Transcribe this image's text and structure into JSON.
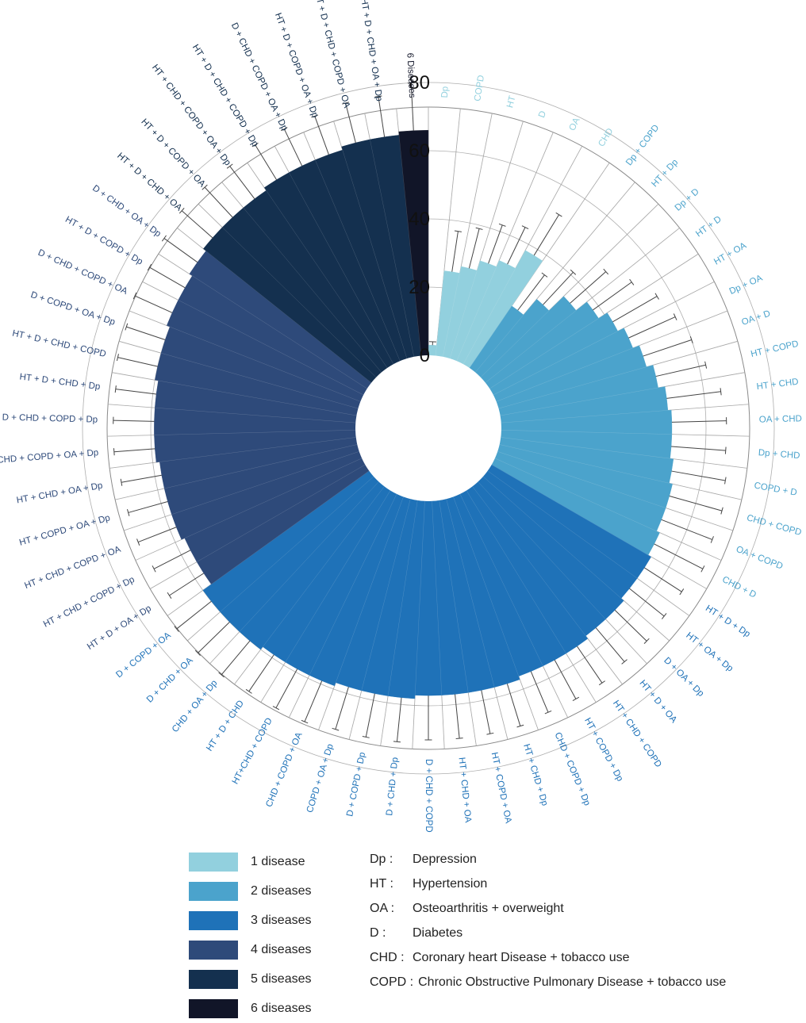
{
  "chart_data": {
    "type": "circular-bar",
    "radial_axis": {
      "ticks": [
        0,
        20,
        40,
        60,
        80
      ],
      "ylim": [
        0,
        80
      ],
      "grid": true
    },
    "groups": [
      {
        "name": "1 disease",
        "color": "#92D0DE",
        "categories": [
          "Dp",
          "COPD",
          "HT",
          "D",
          "OA",
          "CHD"
        ],
        "values": [
          3,
          25,
          27,
          30,
          32,
          38
        ],
        "errors": [
          1,
          12,
          12,
          12,
          12,
          14
        ]
      },
      {
        "name": "2 diseases",
        "color": "#4BA3CC",
        "categories": [
          "Dp + COPD",
          "HT + Dp",
          "Dp + D",
          "HT + D",
          "HT + OA",
          "Dp + OA",
          "OA + D",
          "HT + COPD",
          "HT + CHD",
          "OA + CHD",
          "Dp + CHD",
          "COPD + D",
          "CHD + COPD",
          "OA + COPD",
          "CHD + D"
        ],
        "values": [
          22,
          28,
          34,
          38,
          41,
          43,
          45,
          47,
          49,
          50,
          50,
          51,
          52,
          52,
          53
        ],
        "errors": [
          13,
          13,
          14,
          14,
          15,
          15,
          15,
          15,
          16,
          16,
          16,
          16,
          16,
          16,
          16
        ]
      },
      {
        "name": "3 diseases",
        "color": "#1F72B8",
        "categories": [
          "HT + D + Dp",
          "HT + OA + Dp",
          "D + OA + Dp",
          "HT + D + OA",
          "HT + CHD + COPD",
          "HT + COPD + Dp",
          "CHD + COPD + Dp",
          "HT + CHD + Dp",
          "HT + COPD + OA",
          "HT + CHD + OA",
          "D + CHD + COPD",
          "D + CHD + Dp",
          "D + COPD + Dp",
          "COPD + OA + Dp",
          "CHD + COPD + OA",
          "HT+CHD + COPD",
          "HT + D + CHD",
          "CHD + OA + Dp",
          "D + CHD + OA",
          "D + COPD + OA"
        ],
        "values": [
          54,
          54,
          55,
          55,
          56,
          56,
          56,
          57,
          57,
          57,
          57,
          58,
          58,
          58,
          59,
          59,
          59,
          60,
          60,
          60
        ],
        "errors": [
          13,
          13,
          13,
          13,
          13,
          13,
          13,
          13,
          13,
          13,
          13,
          13,
          13,
          13,
          13,
          13,
          13,
          13,
          13,
          13
        ]
      },
      {
        "name": "4 diseases",
        "color": "#2E4A7A",
        "categories": [
          "HT + D + OA + Dp",
          "HT + CHD + COPD + Dp",
          "HT + CHD + COPD + OA",
          "HT + COPD + OA + Dp",
          "HT + CHD + OA + Dp",
          "CHD + COPD + OA + Dp",
          "D + CHD + COPD + Dp",
          "HT + D + CHD + Dp",
          "HT + D + CHD + COPD",
          "D + COPD + OA + Dp",
          "D + CHD + COPD + OA",
          "HT + D + COPD + Dp",
          "D + CHD + OA + Dp"
        ],
        "values": [
          57,
          57,
          58,
          58,
          58,
          59,
          59,
          59,
          60,
          60,
          61,
          61,
          62
        ],
        "errors": [
          12,
          12,
          12,
          12,
          12,
          12,
          12,
          12,
          12,
          12,
          12,
          12,
          12
        ]
      },
      {
        "name": "5 diseases",
        "color": "#14304F",
        "categories": [
          "HT + D + CHD + OA",
          "HT + D + COPD + OA",
          "HT + CHD + COPD + OA + Dp",
          "HT + D + CHD + COPD + Dp",
          "D + CHD + COPD + OA + Dp",
          "HT + D + COPD + OA + Dp",
          "HT + D + CHD + COPD + OA",
          "HT + D + CHD + OA + Dp"
        ],
        "values": [
          63,
          63,
          63,
          64,
          64,
          64,
          65,
          65
        ],
        "errors": [
          12,
          12,
          12,
          12,
          12,
          12,
          12,
          12
        ]
      },
      {
        "name": "6 diseases",
        "color": "#111528",
        "categories": [
          "6 Diseases"
        ],
        "values": [
          66
        ],
        "errors": [
          14
        ]
      }
    ]
  },
  "legend": [
    {
      "label": "1 disease",
      "color": "#92D0DE"
    },
    {
      "label": "2 diseases",
      "color": "#4BA3CC"
    },
    {
      "label": "3 diseases",
      "color": "#1F72B8"
    },
    {
      "label": "4 diseases",
      "color": "#2E4A7A"
    },
    {
      "label": "5 diseases",
      "color": "#14304F"
    },
    {
      "label": "6 diseases",
      "color": "#111528"
    }
  ],
  "abbreviations": [
    {
      "key": "Dp :",
      "desc": "Depression"
    },
    {
      "key": "HT :",
      "desc": "Hypertension"
    },
    {
      "key": "OA :",
      "desc": "Osteoarthritis + overweight"
    },
    {
      "key": "D :",
      "desc": "Diabetes"
    },
    {
      "key": "CHD :",
      "desc": "Coronary heart Disease + tobacco use"
    },
    {
      "key": "COPD :",
      "desc": "Chronic Obstructive Pulmonary Disease  + tobacco use"
    }
  ]
}
